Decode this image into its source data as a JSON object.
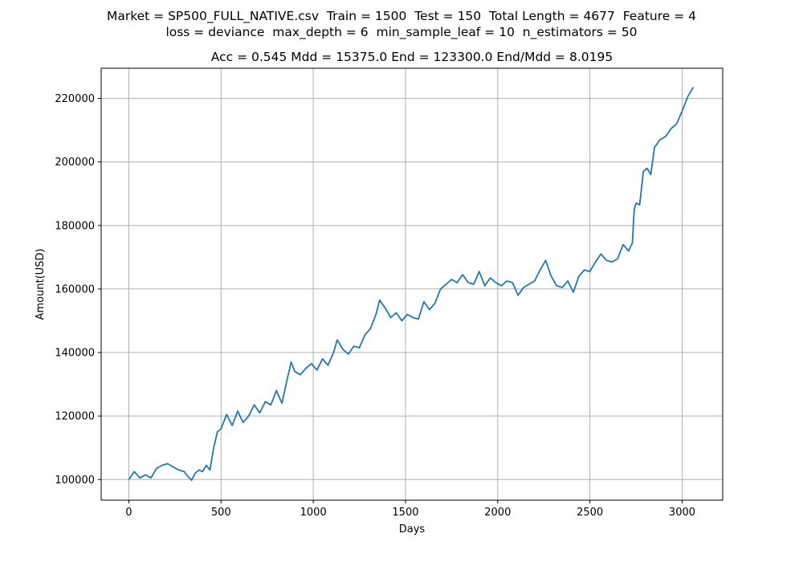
{
  "figure": {
    "suptitle_line1": "Market = SP500_FULL_NATIVE.csv  Train = 1500  Test = 150  Total Length = 4677  Feature = 4",
    "suptitle_line2": "loss = deviance  max_depth = 6  min_sample_leaf = 10  n_estimators = 50"
  },
  "chart_data": {
    "type": "line",
    "title": "Acc = 0.545  Mdd = 15375.0  End = 123300.0  End/Mdd = 8.0195",
    "xlabel": "Days",
    "ylabel": "Amount(USD)",
    "xlim": [
      -150,
      3220
    ],
    "ylim": [
      93500,
      229500
    ],
    "xticks": [
      0,
      500,
      1000,
      1500,
      2000,
      2500,
      3000
    ],
    "yticks": [
      100000,
      120000,
      140000,
      160000,
      180000,
      200000,
      220000
    ],
    "grid": true,
    "line_color": "#1f77b4",
    "series": [
      {
        "x": [
          0,
          30,
          60,
          90,
          120,
          150,
          180,
          210,
          240,
          270,
          300,
          320,
          340,
          360,
          380,
          400,
          420,
          440,
          460,
          480,
          500,
          530,
          560,
          590,
          620,
          650,
          680,
          710,
          740,
          770,
          800,
          830,
          860,
          880,
          900,
          930,
          960,
          990,
          1020,
          1050,
          1080,
          1110,
          1130,
          1160,
          1190,
          1220,
          1250,
          1280,
          1310,
          1340,
          1360,
          1390,
          1420,
          1450,
          1480,
          1510,
          1540,
          1570,
          1600,
          1630,
          1660,
          1690,
          1720,
          1750,
          1780,
          1810,
          1840,
          1870,
          1900,
          1930,
          1960,
          1990,
          2020,
          2050,
          2080,
          2110,
          2140,
          2170,
          2200,
          2230,
          2260,
          2290,
          2320,
          2350,
          2380,
          2410,
          2440,
          2470,
          2500,
          2530,
          2560,
          2590,
          2620,
          2650,
          2680,
          2710,
          2730,
          2740,
          2750,
          2770,
          2790,
          2810,
          2830,
          2850,
          2880,
          2910,
          2940,
          2970,
          3000,
          3030,
          3060
        ],
        "y": [
          100000,
          102500,
          100500,
          101500,
          100500,
          103500,
          104500,
          105000,
          104000,
          103000,
          102500,
          101000,
          99800,
          102000,
          103000,
          102500,
          104500,
          103000,
          110000,
          115000,
          116000,
          120500,
          117000,
          121500,
          118000,
          120000,
          123500,
          121000,
          124500,
          123500,
          128000,
          124000,
          132000,
          137000,
          134000,
          133000,
          135000,
          136500,
          134500,
          138000,
          136000,
          140000,
          144000,
          141000,
          139500,
          142000,
          141500,
          145500,
          147500,
          152000,
          156500,
          154000,
          151000,
          152500,
          150000,
          152000,
          151000,
          150500,
          156000,
          153500,
          155500,
          160000,
          161500,
          163000,
          162000,
          164500,
          162000,
          161500,
          165500,
          161000,
          163500,
          162000,
          161000,
          162500,
          162000,
          158000,
          160500,
          161500,
          162500,
          166000,
          169000,
          164000,
          161000,
          160500,
          162500,
          159000,
          164000,
          166000,
          165500,
          168500,
          171000,
          169000,
          168500,
          169500,
          174000,
          172000,
          174500,
          185000,
          187000,
          186500,
          197000,
          198000,
          196000,
          204500,
          207000,
          208000,
          210500,
          212000,
          216000,
          220500,
          223500
        ]
      }
    ]
  }
}
